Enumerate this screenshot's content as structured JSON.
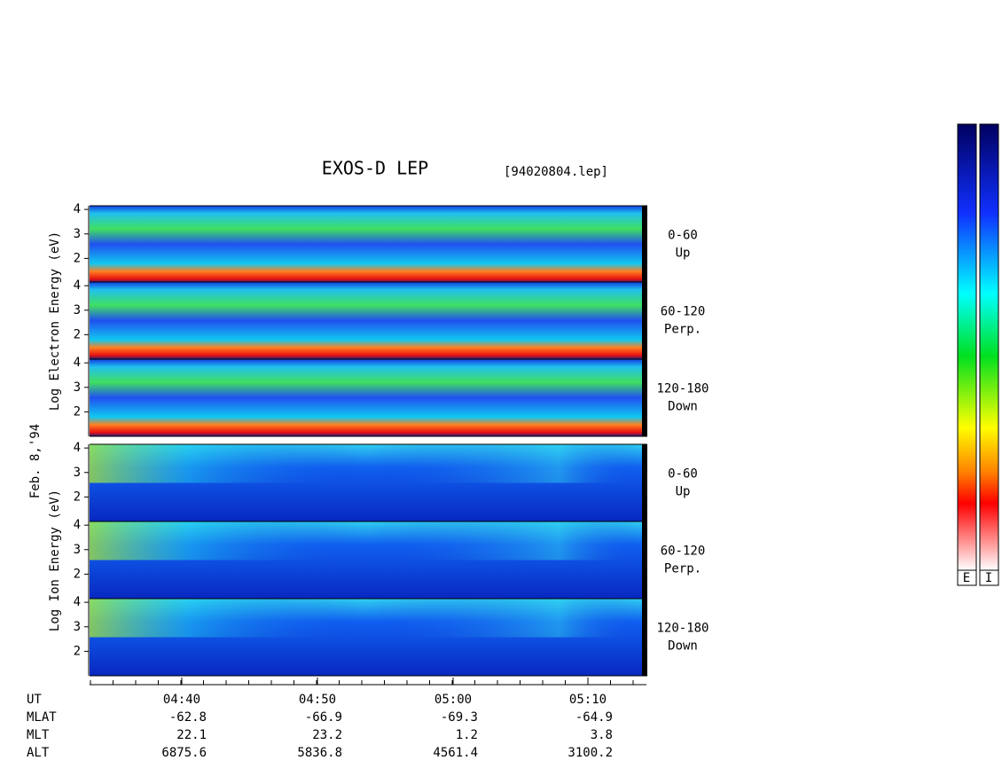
{
  "chart_data": {
    "type": "spectrogram",
    "title": "EXOS-D LEP",
    "file": "[94020804.lep]",
    "date": "Feb. 8,'94",
    "electron_axis_label": "Log Electron Energy (eV)",
    "ion_axis_label": "Log Ion Energy (eV)",
    "ylim": [
      1,
      4.15
    ],
    "yticks": [
      2,
      3,
      4
    ],
    "panels": [
      {
        "species": "electron",
        "angle": "0-60",
        "direction": "Up"
      },
      {
        "species": "electron",
        "angle": "60-120",
        "direction": "Perp."
      },
      {
        "species": "electron",
        "angle": "120-180",
        "direction": "Down"
      },
      {
        "species": "ion",
        "angle": "0-60",
        "direction": "Up"
      },
      {
        "species": "ion",
        "angle": "60-120",
        "direction": "Perp."
      },
      {
        "species": "ion",
        "angle": "120-180",
        "direction": "Down"
      }
    ],
    "row_names": [
      "UT",
      "MLAT",
      "MLT",
      "ALT"
    ],
    "ut": [
      "04:40",
      "04:50",
      "05:00",
      "05:10"
    ],
    "mlat": [
      -62.8,
      -66.9,
      -69.3,
      -64.9
    ],
    "mlt": [
      22.1,
      23.2,
      1.2,
      3.8
    ],
    "alt": [
      6875.6,
      5836.8,
      4561.4,
      3100.2
    ],
    "colorbar_labels": [
      "E",
      "I"
    ]
  }
}
